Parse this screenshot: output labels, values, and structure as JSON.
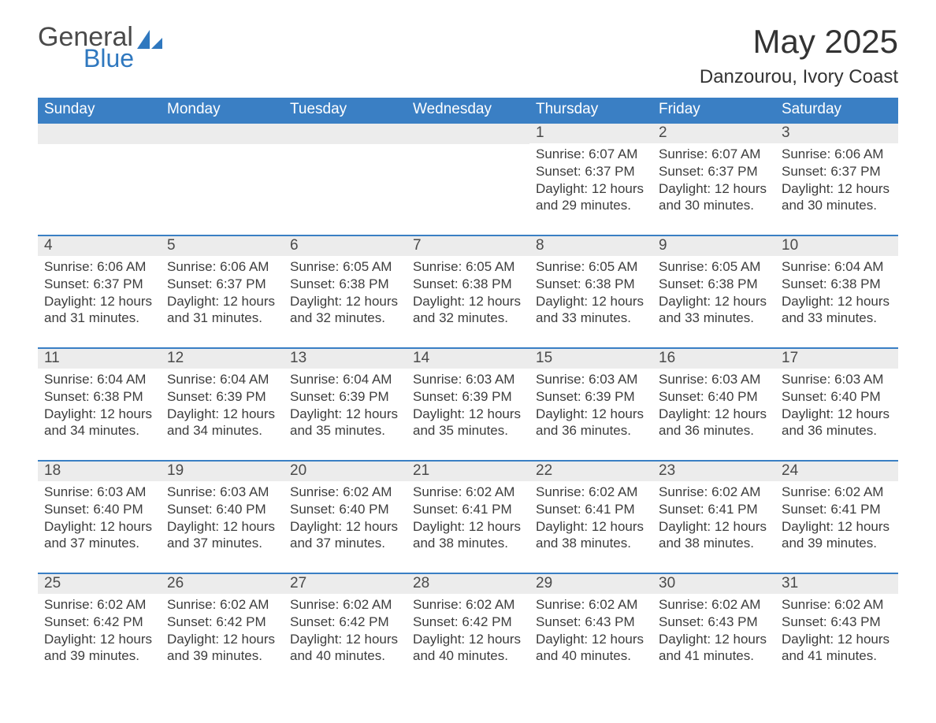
{
  "brand": {
    "word1": "General",
    "word2": "Blue",
    "text_color": "#4a4a4a",
    "accent_color": "#2f78bf"
  },
  "header": {
    "month_title": "May 2025",
    "location": "Danzourou, Ivory Coast"
  },
  "calendar": {
    "type": "table",
    "header_bg": "#3a7fc4",
    "header_text_color": "#ffffff",
    "daynum_bg": "#ececec",
    "row_divider_color": "#3a7fc4",
    "body_text_color": "#3d3d3d",
    "body_fontsize": 17,
    "weekdays": [
      "Sunday",
      "Monday",
      "Tuesday",
      "Wednesday",
      "Thursday",
      "Friday",
      "Saturday"
    ],
    "weeks": [
      [
        null,
        null,
        null,
        null,
        {
          "n": "1",
          "sunrise": "6:07 AM",
          "sunset": "6:37 PM",
          "daylight": "12 hours and 29 minutes."
        },
        {
          "n": "2",
          "sunrise": "6:07 AM",
          "sunset": "6:37 PM",
          "daylight": "12 hours and 30 minutes."
        },
        {
          "n": "3",
          "sunrise": "6:06 AM",
          "sunset": "6:37 PM",
          "daylight": "12 hours and 30 minutes."
        }
      ],
      [
        {
          "n": "4",
          "sunrise": "6:06 AM",
          "sunset": "6:37 PM",
          "daylight": "12 hours and 31 minutes."
        },
        {
          "n": "5",
          "sunrise": "6:06 AM",
          "sunset": "6:37 PM",
          "daylight": "12 hours and 31 minutes."
        },
        {
          "n": "6",
          "sunrise": "6:05 AM",
          "sunset": "6:38 PM",
          "daylight": "12 hours and 32 minutes."
        },
        {
          "n": "7",
          "sunrise": "6:05 AM",
          "sunset": "6:38 PM",
          "daylight": "12 hours and 32 minutes."
        },
        {
          "n": "8",
          "sunrise": "6:05 AM",
          "sunset": "6:38 PM",
          "daylight": "12 hours and 33 minutes."
        },
        {
          "n": "9",
          "sunrise": "6:05 AM",
          "sunset": "6:38 PM",
          "daylight": "12 hours and 33 minutes."
        },
        {
          "n": "10",
          "sunrise": "6:04 AM",
          "sunset": "6:38 PM",
          "daylight": "12 hours and 33 minutes."
        }
      ],
      [
        {
          "n": "11",
          "sunrise": "6:04 AM",
          "sunset": "6:38 PM",
          "daylight": "12 hours and 34 minutes."
        },
        {
          "n": "12",
          "sunrise": "6:04 AM",
          "sunset": "6:39 PM",
          "daylight": "12 hours and 34 minutes."
        },
        {
          "n": "13",
          "sunrise": "6:04 AM",
          "sunset": "6:39 PM",
          "daylight": "12 hours and 35 minutes."
        },
        {
          "n": "14",
          "sunrise": "6:03 AM",
          "sunset": "6:39 PM",
          "daylight": "12 hours and 35 minutes."
        },
        {
          "n": "15",
          "sunrise": "6:03 AM",
          "sunset": "6:39 PM",
          "daylight": "12 hours and 36 minutes."
        },
        {
          "n": "16",
          "sunrise": "6:03 AM",
          "sunset": "6:40 PM",
          "daylight": "12 hours and 36 minutes."
        },
        {
          "n": "17",
          "sunrise": "6:03 AM",
          "sunset": "6:40 PM",
          "daylight": "12 hours and 36 minutes."
        }
      ],
      [
        {
          "n": "18",
          "sunrise": "6:03 AM",
          "sunset": "6:40 PM",
          "daylight": "12 hours and 37 minutes."
        },
        {
          "n": "19",
          "sunrise": "6:03 AM",
          "sunset": "6:40 PM",
          "daylight": "12 hours and 37 minutes."
        },
        {
          "n": "20",
          "sunrise": "6:02 AM",
          "sunset": "6:40 PM",
          "daylight": "12 hours and 37 minutes."
        },
        {
          "n": "21",
          "sunrise": "6:02 AM",
          "sunset": "6:41 PM",
          "daylight": "12 hours and 38 minutes."
        },
        {
          "n": "22",
          "sunrise": "6:02 AM",
          "sunset": "6:41 PM",
          "daylight": "12 hours and 38 minutes."
        },
        {
          "n": "23",
          "sunrise": "6:02 AM",
          "sunset": "6:41 PM",
          "daylight": "12 hours and 38 minutes."
        },
        {
          "n": "24",
          "sunrise": "6:02 AM",
          "sunset": "6:41 PM",
          "daylight": "12 hours and 39 minutes."
        }
      ],
      [
        {
          "n": "25",
          "sunrise": "6:02 AM",
          "sunset": "6:42 PM",
          "daylight": "12 hours and 39 minutes."
        },
        {
          "n": "26",
          "sunrise": "6:02 AM",
          "sunset": "6:42 PM",
          "daylight": "12 hours and 39 minutes."
        },
        {
          "n": "27",
          "sunrise": "6:02 AM",
          "sunset": "6:42 PM",
          "daylight": "12 hours and 40 minutes."
        },
        {
          "n": "28",
          "sunrise": "6:02 AM",
          "sunset": "6:42 PM",
          "daylight": "12 hours and 40 minutes."
        },
        {
          "n": "29",
          "sunrise": "6:02 AM",
          "sunset": "6:43 PM",
          "daylight": "12 hours and 40 minutes."
        },
        {
          "n": "30",
          "sunrise": "6:02 AM",
          "sunset": "6:43 PM",
          "daylight": "12 hours and 41 minutes."
        },
        {
          "n": "31",
          "sunrise": "6:02 AM",
          "sunset": "6:43 PM",
          "daylight": "12 hours and 41 minutes."
        }
      ]
    ],
    "labels": {
      "sunrise": "Sunrise:",
      "sunset": "Sunset:",
      "daylight": "Daylight:"
    }
  }
}
